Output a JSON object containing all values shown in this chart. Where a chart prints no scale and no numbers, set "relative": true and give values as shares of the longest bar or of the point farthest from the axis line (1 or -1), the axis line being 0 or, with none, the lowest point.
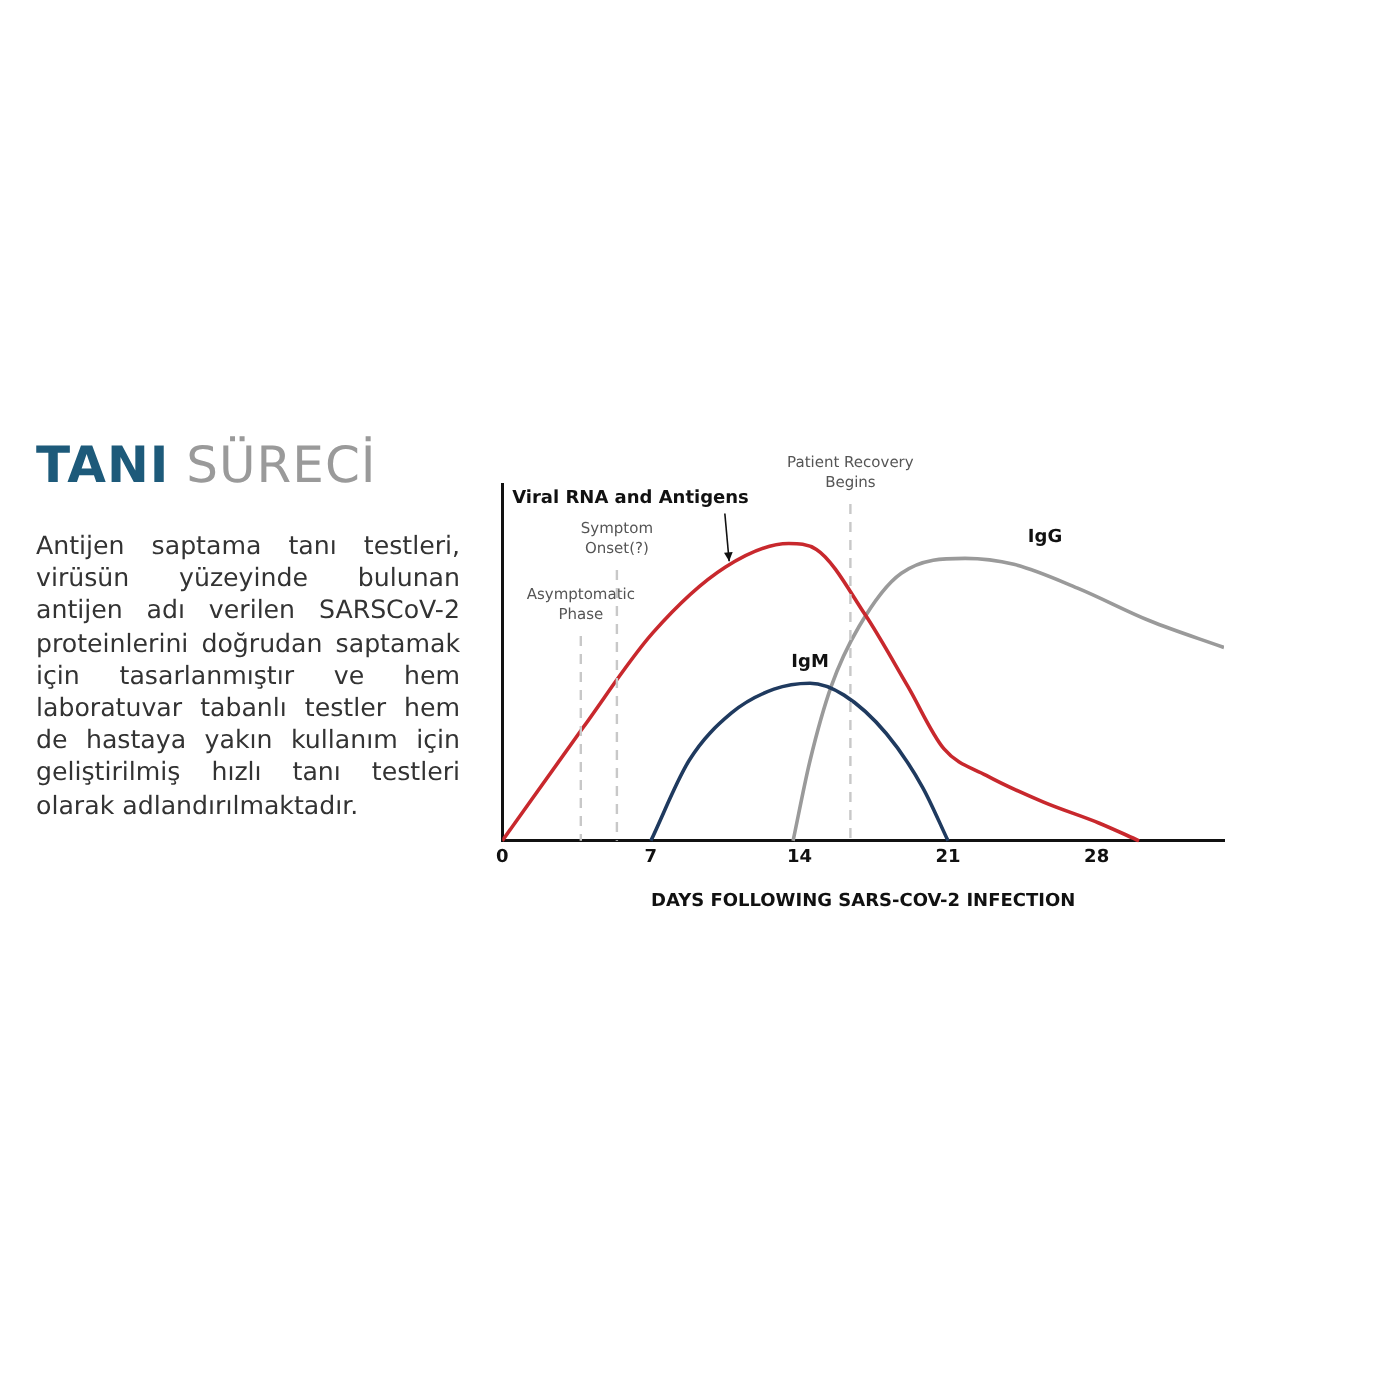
{
  "chart_data": [
    {
      "type": "other",
      "title": "TANI SÜRECİ",
      "annotations": [
        "Antijen saptama tanı testleri, virüsün yüzeyinde bulunan antijen adı verilen SARSCoV-2 proteinlerini doğrudan saptamak için tasarlanmıştır ve hem laboratuvar tabanlı testler hem de hastaya yakın kullanım için geliştirilmiş hızlı tanı testleri olarak adlandırılmaktadır."
      ]
    },
    {
      "type": "line",
      "relative": true,
      "xlabel": "DAYS FOLLOWING SARS-COV-2 INFECTION",
      "xlim": [
        0,
        34
      ],
      "xticks": [
        0,
        7,
        14,
        21,
        28
      ],
      "tick_labels": "x",
      "grid": false,
      "legend": false,
      "marker": "none",
      "line_style": "solid",
      "series": [
        {
          "name": "Viral RNA and Antigens",
          "color": "#c8282d",
          "x": [
            0,
            3.8,
            7.1,
            10.5,
            13.5,
            14.8,
            17.1,
            19.1,
            20.8,
            22.8,
            25.5,
            28.1,
            30
          ],
          "values": [
            0,
            0.38,
            0.7,
            0.92,
            1,
            0.98,
            0.76,
            0.52,
            0.31,
            0.22,
            0.13,
            0.06,
            0
          ]
        },
        {
          "name": "IgM",
          "color": "#1f3a5f",
          "x": [
            7,
            8.8,
            10.8,
            12.8,
            14.5,
            16.1,
            18.1,
            19.8,
            21
          ],
          "values": [
            0,
            0.27,
            0.43,
            0.51,
            0.53,
            0.49,
            0.36,
            0.18,
            0
          ]
        },
        {
          "name": "IgG",
          "color": "#9a9a9a",
          "x": [
            13.7,
            14.5,
            15.5,
            16.8,
            18.8,
            21.8,
            24.1,
            27.1,
            30.5,
            34
          ],
          "values": [
            0,
            0.27,
            0.52,
            0.72,
            0.9,
            0.95,
            0.93,
            0.85,
            0.74,
            0.65
          ]
        }
      ],
      "ref_lines": [
        {
          "axis": "x",
          "value": 3.7,
          "label": "Asymptomatic Phase",
          "color": "#c8c8c8",
          "line_style": "dashed"
        },
        {
          "axis": "x",
          "value": 5.4,
          "label": "Symptom Onset(?)",
          "color": "#c8c8c8",
          "line_style": "dashed"
        },
        {
          "axis": "x",
          "value": 16.4,
          "label": "Patient Recovery Begins",
          "color": "#c8c8c8",
          "line_style": "dashed"
        }
      ]
    }
  ]
}
